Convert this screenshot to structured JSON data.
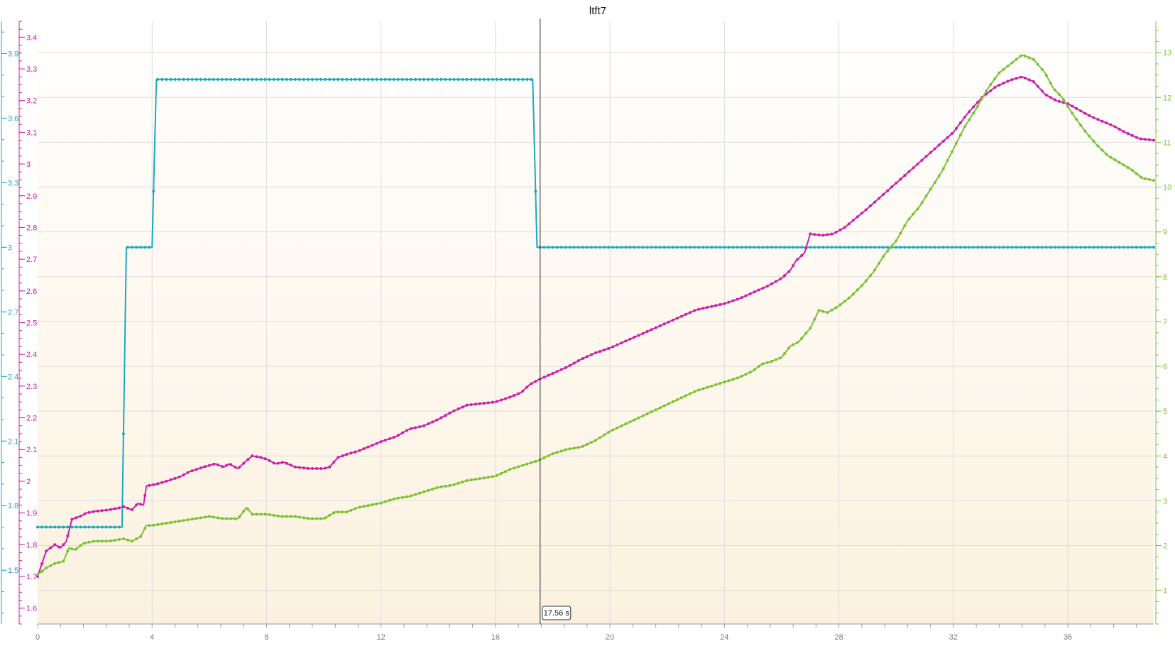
{
  "chart_data": {
    "type": "line",
    "title": "ltft7",
    "x_axis": {
      "min": 0,
      "max": 39,
      "ticks": [
        0,
        4,
        8,
        12,
        16,
        20,
        24,
        28,
        32,
        36
      ],
      "unit": "s"
    },
    "axes": {
      "magenta": {
        "side": "left",
        "color": "#cc1fa8",
        "min": 1.55,
        "max": 3.45,
        "ticks": [
          1.6,
          1.7,
          1.8,
          1.9,
          2,
          2.1,
          2.2,
          2.3,
          2.4,
          2.5,
          2.6,
          2.7,
          2.8,
          2.9,
          3,
          3.1,
          3.2,
          3.3,
          3.4
        ]
      },
      "cyan": {
        "side": "left",
        "color": "#1aa9c4",
        "min": 1.25,
        "max": 4.05,
        "ticks": [
          1.5,
          1.8,
          2.1,
          2.4,
          2.7,
          3,
          3.3,
          3.6,
          3.9
        ]
      },
      "green": {
        "side": "right",
        "color": "#7cc234",
        "min": 0.25,
        "max": 13.7,
        "ticks": [
          1,
          2,
          3,
          4,
          5,
          6,
          7,
          8,
          9,
          10,
          11,
          12,
          13
        ]
      }
    },
    "cursor": {
      "x": 17.56,
      "label": "17.56 s"
    },
    "series": [
      {
        "axis": "cyan",
        "color": "#1aa9c4",
        "points": [
          [
            0,
            1.7
          ],
          [
            2.95,
            1.7
          ],
          [
            3.1,
            3.0
          ],
          [
            4.0,
            3.0
          ],
          [
            4.15,
            3.78
          ],
          [
            17.3,
            3.78
          ],
          [
            17.45,
            3.0
          ],
          [
            39,
            3.0
          ]
        ]
      },
      {
        "axis": "magenta",
        "color": "#cc1fa8",
        "points": [
          [
            0,
            1.7
          ],
          [
            0.3,
            1.78
          ],
          [
            0.6,
            1.8
          ],
          [
            0.8,
            1.79
          ],
          [
            1.0,
            1.81
          ],
          [
            1.2,
            1.88
          ],
          [
            1.5,
            1.89
          ],
          [
            1.7,
            1.9
          ],
          [
            2.0,
            1.905
          ],
          [
            2.5,
            1.91
          ],
          [
            2.8,
            1.915
          ],
          [
            3.0,
            1.92
          ],
          [
            3.3,
            1.91
          ],
          [
            3.5,
            1.93
          ],
          [
            3.7,
            1.925
          ],
          [
            3.8,
            1.985
          ],
          [
            4.1,
            1.99
          ],
          [
            4.5,
            2.0
          ],
          [
            5.0,
            2.015
          ],
          [
            5.3,
            2.03
          ],
          [
            5.8,
            2.045
          ],
          [
            6.2,
            2.055
          ],
          [
            6.5,
            2.045
          ],
          [
            6.7,
            2.055
          ],
          [
            7.0,
            2.04
          ],
          [
            7.3,
            2.065
          ],
          [
            7.5,
            2.08
          ],
          [
            7.8,
            2.075
          ],
          [
            8.0,
            2.07
          ],
          [
            8.3,
            2.055
          ],
          [
            8.6,
            2.06
          ],
          [
            9.0,
            2.045
          ],
          [
            9.5,
            2.04
          ],
          [
            10.0,
            2.04
          ],
          [
            10.2,
            2.045
          ],
          [
            10.5,
            2.075
          ],
          [
            10.8,
            2.085
          ],
          [
            11.2,
            2.095
          ],
          [
            11.6,
            2.11
          ],
          [
            12.0,
            2.125
          ],
          [
            12.5,
            2.14
          ],
          [
            13.0,
            2.165
          ],
          [
            13.5,
            2.175
          ],
          [
            14.0,
            2.195
          ],
          [
            14.5,
            2.22
          ],
          [
            15.0,
            2.24
          ],
          [
            15.5,
            2.245
          ],
          [
            16.0,
            2.25
          ],
          [
            16.5,
            2.265
          ],
          [
            16.9,
            2.28
          ],
          [
            17.2,
            2.305
          ],
          [
            17.5,
            2.32
          ],
          [
            18.0,
            2.34
          ],
          [
            18.5,
            2.36
          ],
          [
            19.0,
            2.385
          ],
          [
            19.5,
            2.405
          ],
          [
            20.0,
            2.42
          ],
          [
            20.5,
            2.44
          ],
          [
            21.0,
            2.46
          ],
          [
            21.5,
            2.48
          ],
          [
            22.0,
            2.5
          ],
          [
            22.5,
            2.52
          ],
          [
            23.0,
            2.54
          ],
          [
            23.5,
            2.55
          ],
          [
            24.0,
            2.56
          ],
          [
            24.5,
            2.575
          ],
          [
            25.0,
            2.595
          ],
          [
            25.5,
            2.615
          ],
          [
            26.0,
            2.64
          ],
          [
            26.3,
            2.665
          ],
          [
            26.5,
            2.695
          ],
          [
            26.8,
            2.72
          ],
          [
            27.0,
            2.78
          ],
          [
            27.4,
            2.775
          ],
          [
            27.8,
            2.78
          ],
          [
            28.2,
            2.8
          ],
          [
            28.6,
            2.83
          ],
          [
            29.0,
            2.86
          ],
          [
            29.5,
            2.9
          ],
          [
            30.0,
            2.94
          ],
          [
            30.5,
            2.98
          ],
          [
            31.0,
            3.02
          ],
          [
            31.5,
            3.06
          ],
          [
            32.0,
            3.1
          ],
          [
            32.5,
            3.16
          ],
          [
            33.0,
            3.21
          ],
          [
            33.5,
            3.245
          ],
          [
            34.0,
            3.265
          ],
          [
            34.4,
            3.275
          ],
          [
            34.8,
            3.26
          ],
          [
            35.2,
            3.22
          ],
          [
            35.6,
            3.2
          ],
          [
            36.0,
            3.19
          ],
          [
            36.4,
            3.17
          ],
          [
            36.8,
            3.15
          ],
          [
            37.2,
            3.135
          ],
          [
            37.6,
            3.12
          ],
          [
            38.0,
            3.1
          ],
          [
            38.5,
            3.08
          ],
          [
            39.0,
            3.075
          ]
        ]
      },
      {
        "axis": "green",
        "color": "#7cc234",
        "points": [
          [
            0,
            1.35
          ],
          [
            0.3,
            1.5
          ],
          [
            0.6,
            1.6
          ],
          [
            0.9,
            1.65
          ],
          [
            1.1,
            1.95
          ],
          [
            1.3,
            1.9
          ],
          [
            1.6,
            2.05
          ],
          [
            2.0,
            2.1
          ],
          [
            2.5,
            2.1
          ],
          [
            3.0,
            2.15
          ],
          [
            3.3,
            2.1
          ],
          [
            3.6,
            2.2
          ],
          [
            3.8,
            2.45
          ],
          [
            4.0,
            2.45
          ],
          [
            4.5,
            2.5
          ],
          [
            5.0,
            2.55
          ],
          [
            5.5,
            2.6
          ],
          [
            6.0,
            2.65
          ],
          [
            6.5,
            2.6
          ],
          [
            7.0,
            2.6
          ],
          [
            7.3,
            2.85
          ],
          [
            7.5,
            2.7
          ],
          [
            8.0,
            2.7
          ],
          [
            8.5,
            2.65
          ],
          [
            9.0,
            2.65
          ],
          [
            9.5,
            2.6
          ],
          [
            10.0,
            2.6
          ],
          [
            10.4,
            2.75
          ],
          [
            10.8,
            2.75
          ],
          [
            11.2,
            2.85
          ],
          [
            11.6,
            2.9
          ],
          [
            12.0,
            2.95
          ],
          [
            12.5,
            3.05
          ],
          [
            13.0,
            3.1
          ],
          [
            13.5,
            3.2
          ],
          [
            14.0,
            3.3
          ],
          [
            14.5,
            3.35
          ],
          [
            15.0,
            3.45
          ],
          [
            15.5,
            3.5
          ],
          [
            16.0,
            3.55
          ],
          [
            16.5,
            3.7
          ],
          [
            17.0,
            3.8
          ],
          [
            17.5,
            3.9
          ],
          [
            18.0,
            4.05
          ],
          [
            18.5,
            4.15
          ],
          [
            19.0,
            4.2
          ],
          [
            19.5,
            4.35
          ],
          [
            20.0,
            4.55
          ],
          [
            20.5,
            4.7
          ],
          [
            21.0,
            4.85
          ],
          [
            21.5,
            5.0
          ],
          [
            22.0,
            5.15
          ],
          [
            22.5,
            5.3
          ],
          [
            23.0,
            5.45
          ],
          [
            23.5,
            5.55
          ],
          [
            24.0,
            5.65
          ],
          [
            24.5,
            5.75
          ],
          [
            25.0,
            5.9
          ],
          [
            25.3,
            6.05
          ],
          [
            25.6,
            6.1
          ],
          [
            26.0,
            6.2
          ],
          [
            26.3,
            6.45
          ],
          [
            26.6,
            6.55
          ],
          [
            27.0,
            6.85
          ],
          [
            27.3,
            7.25
          ],
          [
            27.6,
            7.2
          ],
          [
            28.0,
            7.35
          ],
          [
            28.4,
            7.55
          ],
          [
            28.8,
            7.8
          ],
          [
            29.2,
            8.1
          ],
          [
            29.6,
            8.5
          ],
          [
            30.0,
            8.8
          ],
          [
            30.4,
            9.25
          ],
          [
            30.8,
            9.55
          ],
          [
            31.2,
            9.95
          ],
          [
            31.6,
            10.35
          ],
          [
            32.0,
            10.85
          ],
          [
            32.4,
            11.35
          ],
          [
            32.8,
            11.75
          ],
          [
            33.2,
            12.2
          ],
          [
            33.6,
            12.55
          ],
          [
            34.0,
            12.75
          ],
          [
            34.4,
            12.95
          ],
          [
            34.8,
            12.85
          ],
          [
            35.2,
            12.55
          ],
          [
            35.5,
            12.2
          ],
          [
            35.8,
            12.0
          ],
          [
            36.2,
            11.6
          ],
          [
            36.6,
            11.25
          ],
          [
            37.0,
            10.95
          ],
          [
            37.4,
            10.7
          ],
          [
            37.8,
            10.55
          ],
          [
            38.2,
            10.4
          ],
          [
            38.6,
            10.2
          ],
          [
            39.0,
            10.15
          ]
        ]
      }
    ]
  }
}
